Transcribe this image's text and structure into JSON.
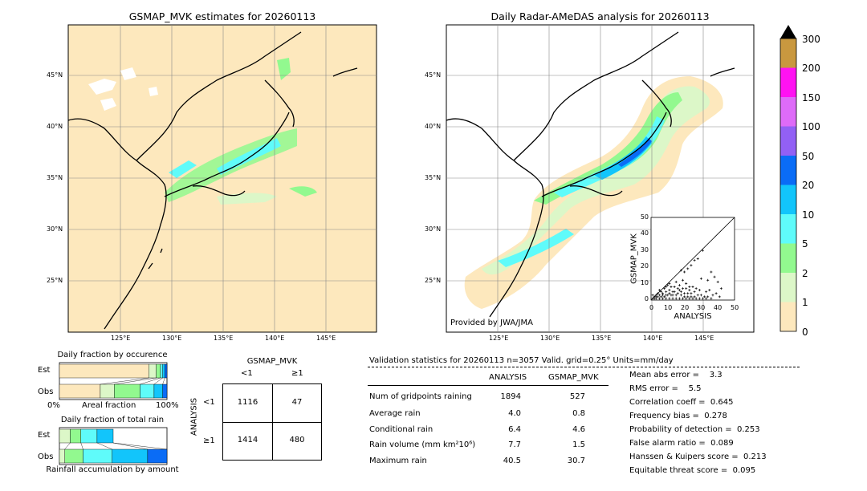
{
  "left_map": {
    "title": "GSMAP_MVK estimates for 20260113"
  },
  "right_map": {
    "title": "Daily Radar-AMeDAS analysis for 20260113",
    "credit": "Provided by JWA/JMA"
  },
  "map_axes": {
    "lon_ticks": [
      "125°E",
      "130°E",
      "135°E",
      "140°E",
      "145°E"
    ],
    "lat_ticks": [
      "45°N",
      "40°N",
      "35°N",
      "30°N",
      "25°N"
    ]
  },
  "colorbar": {
    "levels": [
      "0",
      "1",
      "2",
      "5",
      "10",
      "20",
      "50",
      "100",
      "150",
      "200",
      "300"
    ],
    "colors": [
      "#fde8bd",
      "#dcf7c8",
      "#92f98f",
      "#5ffbfa",
      "#12c5fb",
      "#0a6cf6",
      "#9260f5",
      "#de6bf8",
      "#ff12f2",
      "#c9983f"
    ],
    "over_color": "#000000"
  },
  "scatter": {
    "xlabel": "ANALYSIS",
    "ylabel": "GSMAP_MVK",
    "ticks": [
      "0",
      "10",
      "20",
      "30",
      "40",
      "50"
    ],
    "lim": [
      0,
      50
    ]
  },
  "occurrence": {
    "title": "Daily fraction by occurence",
    "row_labels": [
      "Est",
      "Obs"
    ],
    "axis_left": "0%",
    "axis_mid": "Areal fraction",
    "axis_right": "100%"
  },
  "total_rain": {
    "title": "Daily fraction of total rain",
    "row_labels": [
      "Est",
      "Obs"
    ],
    "footer": "Rainfall accumulation by amount"
  },
  "contingency": {
    "title": "GSMAP_MVK",
    "col_labels": [
      "<1",
      "≥1"
    ],
    "row_labels": [
      "<1",
      "≥1"
    ],
    "side_label": "ANALYSIS",
    "cells": [
      [
        "1116",
        "47"
      ],
      [
        "1414",
        "480"
      ]
    ]
  },
  "validation": {
    "header": "Validation statistics for 20260113  n=3057 Valid. grid=0.25° Units=mm/day",
    "col_headers": [
      "ANALYSIS",
      "GSMAP_MVK"
    ],
    "rows": [
      {
        "label": "Num of gridpoints raining",
        "analysis": "1894",
        "gsmap": "527"
      },
      {
        "label": "Average rain",
        "analysis": "4.0",
        "gsmap": "0.8"
      },
      {
        "label": "Conditional rain",
        "analysis": "6.4",
        "gsmap": "4.6"
      },
      {
        "label": "Rain volume (mm km²10⁶)",
        "analysis": "7.7",
        "gsmap": "1.5"
      },
      {
        "label": "Maximum rain",
        "analysis": "40.5",
        "gsmap": "30.7"
      }
    ],
    "scores": [
      "Mean abs error =    3.3",
      "RMS error =    5.5",
      "Correlation coeff =  0.645",
      "Frequency bias =  0.278",
      "Probability of detection =  0.253",
      "False alarm ratio =  0.089",
      "Hanssen & Kuipers score =  0.213",
      "Equitable threat score =  0.095"
    ]
  },
  "chart_data": [
    {
      "type": "scatter",
      "title": "",
      "xlabel": "ANALYSIS",
      "ylabel": "GSMAP_MVK",
      "xlim": [
        0,
        50
      ],
      "ylim": [
        0,
        50
      ],
      "one_to_one_line": true,
      "points": [
        [
          31,
          30
        ],
        [
          28,
          25
        ],
        [
          26,
          24
        ],
        [
          24,
          21
        ],
        [
          22,
          19
        ],
        [
          20,
          17
        ],
        [
          18,
          18
        ],
        [
          21,
          10
        ],
        [
          30,
          13
        ],
        [
          34,
          12
        ],
        [
          36,
          17
        ],
        [
          38,
          14
        ],
        [
          40,
          11
        ],
        [
          42,
          7
        ],
        [
          25,
          8
        ],
        [
          27,
          7
        ],
        [
          29,
          6
        ],
        [
          33,
          5
        ],
        [
          35,
          6
        ],
        [
          23,
          6
        ],
        [
          19,
          12
        ],
        [
          17,
          9
        ],
        [
          16,
          7
        ],
        [
          15,
          11
        ],
        [
          14,
          8
        ],
        [
          13,
          5
        ],
        [
          12,
          8
        ],
        [
          11,
          6
        ],
        [
          10,
          9
        ],
        [
          9,
          5
        ],
        [
          8,
          7
        ],
        [
          7,
          4
        ],
        [
          6,
          5
        ],
        [
          5,
          6
        ],
        [
          4,
          4
        ],
        [
          3,
          3
        ],
        [
          2,
          2
        ],
        [
          1,
          3
        ],
        [
          20,
          4
        ],
        [
          18,
          5
        ],
        [
          22,
          4
        ],
        [
          24,
          4
        ],
        [
          26,
          5
        ],
        [
          15,
          3
        ],
        [
          12,
          3
        ],
        [
          10,
          3
        ],
        [
          8,
          2
        ],
        [
          6,
          2
        ],
        [
          4,
          2
        ],
        [
          2,
          1
        ],
        [
          1,
          1
        ],
        [
          3,
          1
        ],
        [
          5,
          1
        ],
        [
          7,
          1
        ],
        [
          9,
          1
        ],
        [
          11,
          1
        ],
        [
          13,
          1
        ],
        [
          15,
          1
        ],
        [
          17,
          1
        ],
        [
          19,
          1
        ],
        [
          21,
          1
        ],
        [
          23,
          1
        ],
        [
          25,
          1
        ],
        [
          27,
          1
        ],
        [
          29,
          1
        ],
        [
          31,
          1
        ],
        [
          33,
          1
        ],
        [
          36,
          1
        ],
        [
          16,
          4
        ],
        [
          14,
          5
        ],
        [
          18,
          3
        ],
        [
          20,
          2
        ],
        [
          22,
          2
        ],
        [
          24,
          2
        ],
        [
          26,
          2
        ],
        [
          28,
          3
        ],
        [
          30,
          3
        ],
        [
          32,
          2
        ],
        [
          34,
          2
        ],
        [
          37,
          3
        ],
        [
          39,
          4
        ],
        [
          41,
          2
        ],
        [
          9,
          3
        ],
        [
          7,
          3
        ],
        [
          5,
          3
        ],
        [
          3,
          2
        ],
        [
          11,
          4
        ],
        [
          13,
          3
        ],
        [
          17,
          6
        ],
        [
          19,
          7
        ],
        [
          21,
          7
        ],
        [
          23,
          8
        ],
        [
          11,
          10
        ],
        [
          9,
          8
        ]
      ]
    },
    {
      "type": "bar",
      "title": "Daily fraction by occurence",
      "categories": [
        "Est",
        "Obs"
      ],
      "series": [
        {
          "name": "0",
          "values": [
            0.83,
            0.38
          ]
        },
        {
          "name": "1",
          "values": [
            0.07,
            0.13
          ]
        },
        {
          "name": "2",
          "values": [
            0.04,
            0.24
          ]
        },
        {
          "name": "5",
          "values": [
            0.02,
            0.13
          ]
        },
        {
          "name": "10",
          "values": [
            0.02,
            0.08
          ]
        },
        {
          "name": "20",
          "values": [
            0.02,
            0.04
          ]
        }
      ]
    },
    {
      "type": "bar",
      "title": "Daily fraction of total rain",
      "categories": [
        "Est",
        "Obs"
      ],
      "series": [
        {
          "name": "1",
          "values": [
            0.1,
            0.05
          ]
        },
        {
          "name": "2",
          "values": [
            0.1,
            0.17
          ]
        },
        {
          "name": "5",
          "values": [
            0.15,
            0.27
          ]
        },
        {
          "name": "10",
          "values": [
            0.15,
            0.33
          ]
        },
        {
          "name": "20",
          "values": [
            0.0,
            0.18
          ]
        }
      ]
    }
  ]
}
